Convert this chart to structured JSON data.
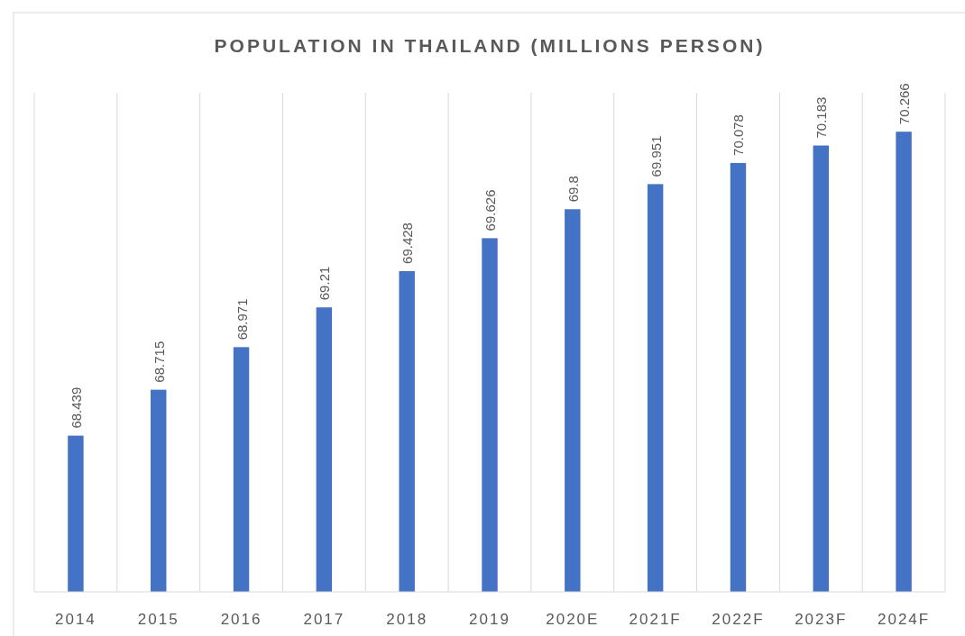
{
  "chart_data": {
    "type": "bar",
    "title": "POPULATION IN THAILAND  (MILLIONS PERSON)",
    "categories": [
      "2014",
      "2015",
      "2016",
      "2017",
      "2018",
      "2019",
      "2020E",
      "2021F",
      "2022F",
      "2023F",
      "2024F"
    ],
    "values": [
      68.439,
      68.715,
      68.971,
      69.21,
      69.428,
      69.626,
      69.8,
      69.951,
      70.078,
      70.183,
      70.266
    ],
    "color": "#4472c4",
    "ylim": [
      67.5,
      70.5
    ],
    "tick_labels": "x",
    "data_labels": true,
    "grid": "x"
  }
}
